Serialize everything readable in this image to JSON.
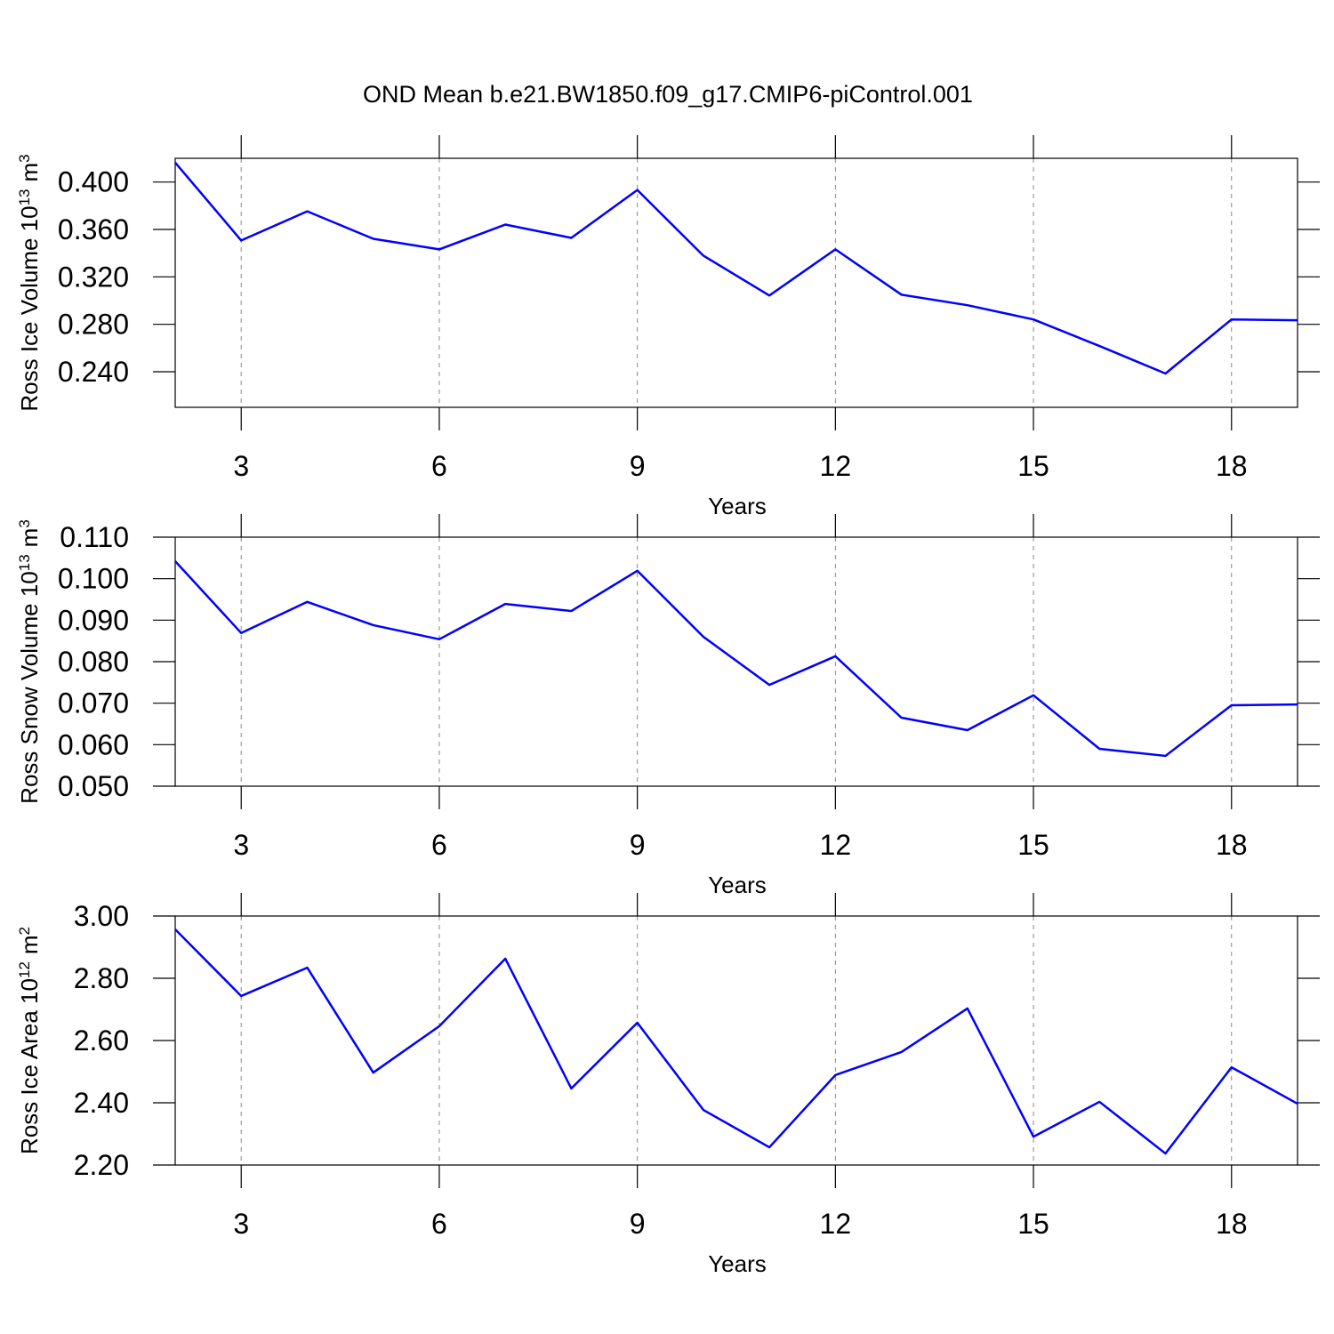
{
  "title": "OND Mean b.e21.BW1850.f09_g17.CMIP6-piControl.001",
  "chart_data": [
    {
      "type": "line",
      "color": "#0000ff",
      "ylabel": [
        {
          "text": "Ross Ice Volume 10"
        },
        {
          "text": "13",
          "sup": true
        },
        {
          "text": "m"
        },
        {
          "text": "3",
          "sup": true
        }
      ],
      "xlabel": "Years",
      "x": [
        2,
        3,
        4,
        5,
        6,
        7,
        8,
        9,
        10,
        11,
        12,
        13,
        14,
        15,
        16,
        17,
        18,
        19
      ],
      "values": [
        0.4164,
        0.3507,
        0.3753,
        0.3521,
        0.3432,
        0.3641,
        0.3529,
        0.3933,
        0.3379,
        0.3043,
        0.3432,
        0.305,
        0.2961,
        0.2841,
        0.2617,
        0.2385,
        0.2841,
        0.2834
      ],
      "xlim": [
        2,
        19
      ],
      "xticks": [
        3,
        6,
        9,
        12,
        15,
        18
      ],
      "ylim": [
        0.21,
        0.42
      ],
      "yticks": [
        {
          "value": 0.24,
          "label": "0.240"
        },
        {
          "value": 0.28,
          "label": "0.280"
        },
        {
          "value": 0.32,
          "label": "0.320"
        },
        {
          "value": 0.36,
          "label": "0.360"
        },
        {
          "value": 0.4,
          "label": "0.400"
        }
      ],
      "grid": "x"
    },
    {
      "type": "line",
      "color": "#0000ff",
      "ylabel": [
        {
          "text": "Ross Snow Volume 10"
        },
        {
          "text": "13",
          "sup": true
        },
        {
          "text": "m"
        },
        {
          "text": "3",
          "sup": true
        }
      ],
      "xlabel": "Years",
      "x": [
        2,
        3,
        4,
        5,
        6,
        7,
        8,
        9,
        10,
        11,
        12,
        13,
        14,
        15,
        16,
        17,
        18,
        19
      ],
      "values": [
        0.1042,
        0.0869,
        0.0944,
        0.0888,
        0.0854,
        0.0939,
        0.0922,
        0.1019,
        0.086,
        0.0744,
        0.0813,
        0.0665,
        0.0635,
        0.0719,
        0.059,
        0.0573,
        0.0695,
        0.0697
      ],
      "xlim": [
        2,
        19
      ],
      "xticks": [
        3,
        6,
        9,
        12,
        15,
        18
      ],
      "ylim": [
        0.05,
        0.11
      ],
      "yticks": [
        {
          "value": 0.05,
          "label": "0.050"
        },
        {
          "value": 0.06,
          "label": "0.060"
        },
        {
          "value": 0.07,
          "label": "0.070"
        },
        {
          "value": 0.08,
          "label": "0.080"
        },
        {
          "value": 0.09,
          "label": "0.090"
        },
        {
          "value": 0.1,
          "label": "0.100"
        },
        {
          "value": 0.11,
          "label": "0.110"
        }
      ],
      "grid": "x"
    },
    {
      "type": "line",
      "color": "#0000ff",
      "ylabel": [
        {
          "text": "Ross Ice Area 10"
        },
        {
          "text": "12",
          "sup": true
        },
        {
          "text": "m"
        },
        {
          "text": "2",
          "sup": true
        }
      ],
      "xlabel": "Years",
      "x": [
        2,
        3,
        4,
        5,
        6,
        7,
        8,
        9,
        10,
        11,
        12,
        13,
        14,
        15,
        16,
        17,
        18,
        19
      ],
      "values": [
        2.957,
        2.743,
        2.834,
        2.497,
        2.646,
        2.863,
        2.446,
        2.657,
        2.377,
        2.257,
        2.489,
        2.563,
        2.703,
        2.291,
        2.403,
        2.237,
        2.514,
        2.397
      ],
      "xlim": [
        2,
        19
      ],
      "xticks": [
        3,
        6,
        9,
        12,
        15,
        18
      ],
      "ylim": [
        2.2,
        3.0
      ],
      "yticks": [
        {
          "value": 2.2,
          "label": "2.20"
        },
        {
          "value": 2.4,
          "label": "2.40"
        },
        {
          "value": 2.6,
          "label": "2.60"
        },
        {
          "value": 2.8,
          "label": "2.80"
        },
        {
          "value": 3.0,
          "label": "3.00"
        }
      ],
      "grid": "x"
    }
  ]
}
